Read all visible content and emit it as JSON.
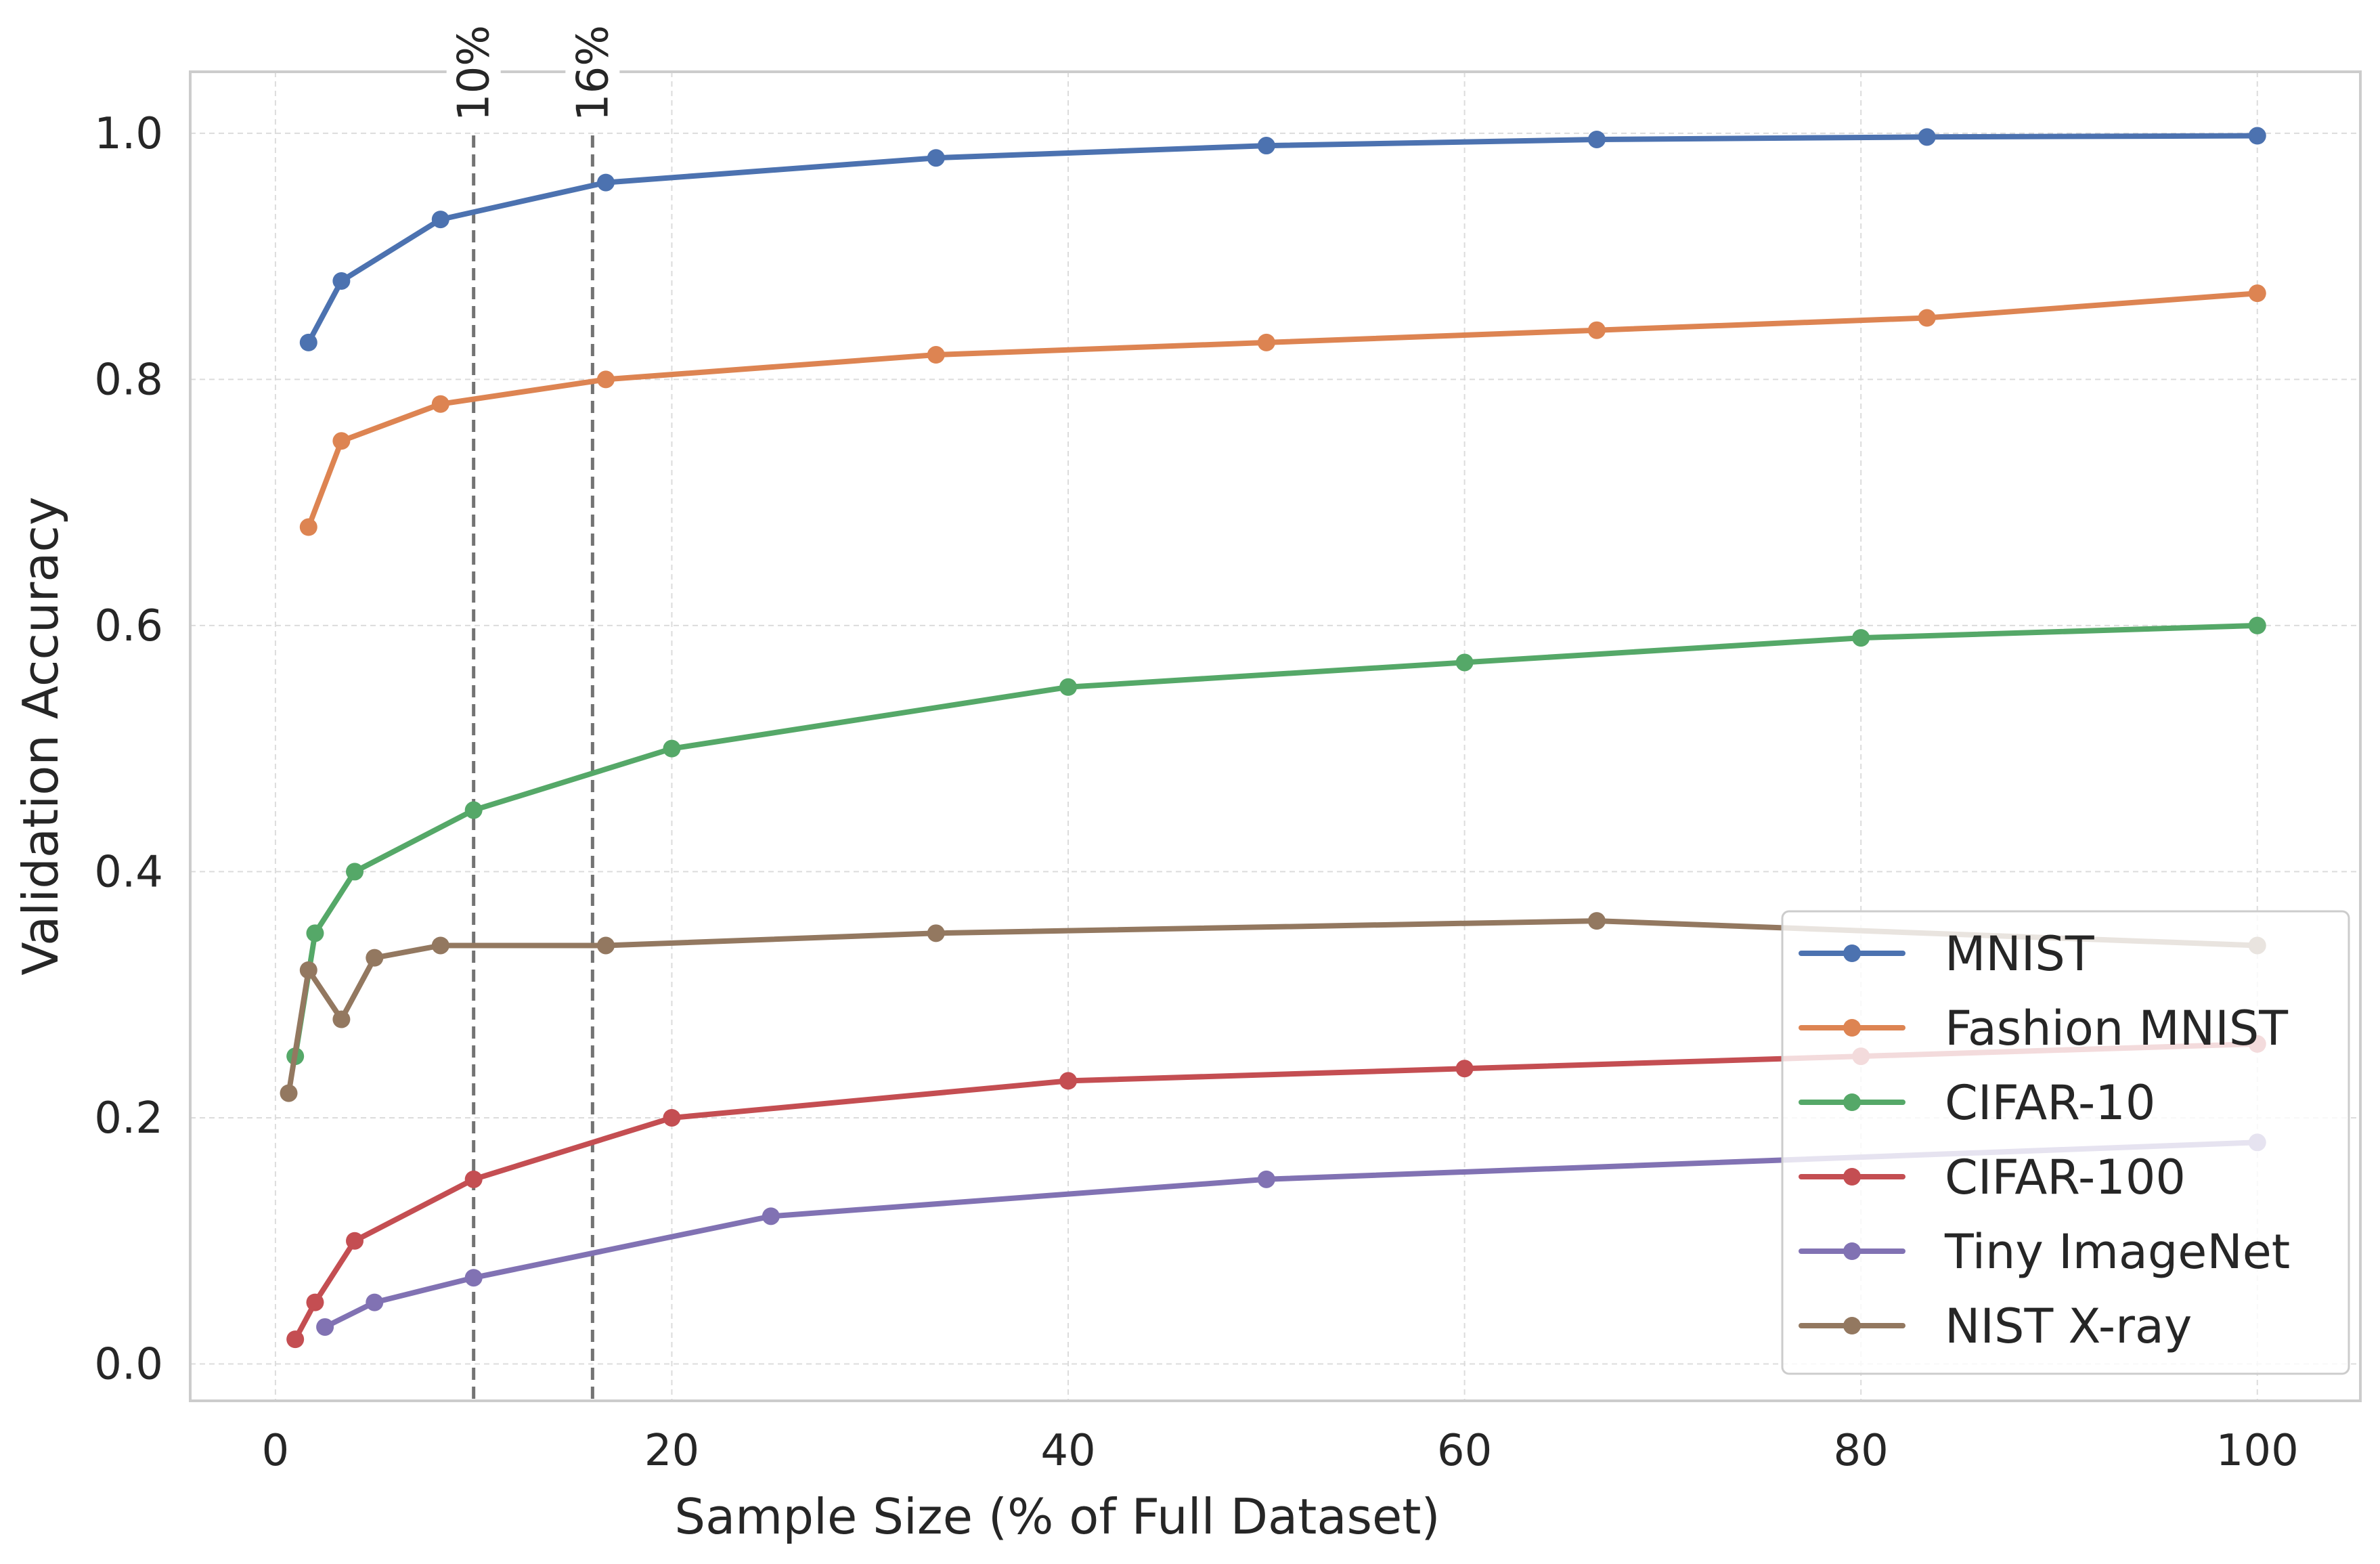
{
  "chart_data": {
    "type": "line",
    "xlabel": "Sample Size (% of Full Dataset)",
    "ylabel": "Validation Accuracy",
    "xlim": [
      -4.3,
      105.2
    ],
    "ylim": [
      -0.03,
      1.05
    ],
    "xticks": [
      0,
      20,
      40,
      60,
      80,
      100
    ],
    "yticks": [
      0.0,
      0.2,
      0.4,
      0.6,
      0.8,
      1.0
    ],
    "xtick_labels": [
      "0",
      "20",
      "40",
      "60",
      "80",
      "100"
    ],
    "ytick_labels": [
      "0.0",
      "0.2",
      "0.4",
      "0.6",
      "0.8",
      "1.0"
    ],
    "grid": true,
    "legend_position": "lower-right",
    "vlines": [
      {
        "x": 10,
        "label": "10%"
      },
      {
        "x": 16,
        "label": "16%"
      }
    ],
    "series": [
      {
        "name": "MNIST",
        "color": "#4c72b0",
        "x": [
          1.67,
          3.33,
          8.33,
          16.67,
          33.33,
          50,
          66.67,
          83.33,
          100
        ],
        "y": [
          0.83,
          0.88,
          0.93,
          0.96,
          0.98,
          0.99,
          0.995,
          0.997,
          0.998
        ]
      },
      {
        "name": "Fashion MNIST",
        "color": "#dd8452",
        "x": [
          1.67,
          3.33,
          8.33,
          16.67,
          33.33,
          50,
          66.67,
          83.33,
          100
        ],
        "y": [
          0.68,
          0.75,
          0.78,
          0.8,
          0.82,
          0.83,
          0.84,
          0.85,
          0.87
        ]
      },
      {
        "name": "CIFAR-10",
        "color": "#55a868",
        "x": [
          1,
          2,
          4,
          10,
          20,
          40,
          60,
          80,
          100
        ],
        "y": [
          0.25,
          0.35,
          0.4,
          0.45,
          0.5,
          0.55,
          0.57,
          0.59,
          0.6
        ]
      },
      {
        "name": "CIFAR-100",
        "color": "#c44e52",
        "x": [
          1,
          2,
          4,
          10,
          20,
          40,
          60,
          80,
          100
        ],
        "y": [
          0.02,
          0.05,
          0.1,
          0.15,
          0.2,
          0.23,
          0.24,
          0.25,
          0.26
        ]
      },
      {
        "name": "Tiny ImageNet",
        "color": "#8172b3",
        "x": [
          2.5,
          5,
          10,
          25,
          50,
          100
        ],
        "y": [
          0.03,
          0.05,
          0.07,
          0.12,
          0.15,
          0.18
        ]
      },
      {
        "name": "NIST X-ray",
        "color": "#937860",
        "x": [
          0.67,
          1.67,
          3.33,
          5,
          8.33,
          16.67,
          33.33,
          66.67,
          100
        ],
        "y": [
          0.22,
          0.32,
          0.28,
          0.33,
          0.34,
          0.34,
          0.35,
          0.36,
          0.34
        ]
      }
    ]
  }
}
